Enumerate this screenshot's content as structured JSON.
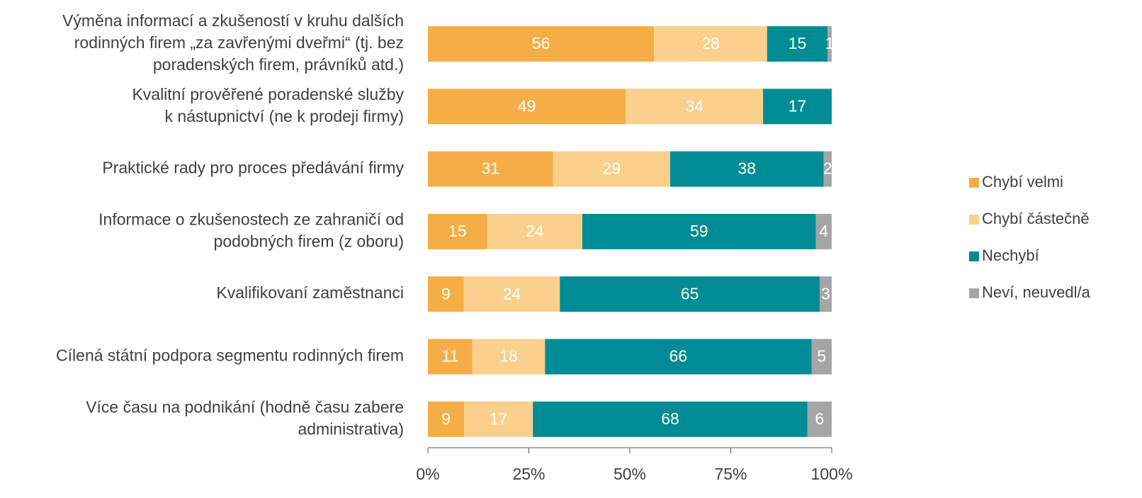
{
  "chart_data": {
    "type": "bar",
    "orientation": "horizontal",
    "stack": "percent",
    "categories": [
      "Výměna informací a zkušeností v kruhu dalších\nrodinných firem „za zavřenými dveřmi“ (tj. bez\nporadenských firem, právníků atd.)",
      "Kvalitní prověřené poradenské služby\nk nástupnictví (ne k prodeji firmy)",
      "Praktické rady pro proces předávání firmy",
      "Informace o zkušenostech ze zahraničí od\npodobných firem (z oboru)",
      "Kvalifikovaní zaměstnanci",
      "Cílená státní podpora segmentu rodinných firem",
      "Více času na podnikání (hodně času zabere\nadministrativa)"
    ],
    "series": [
      {
        "name": "Chybí velmi",
        "color": "#f5ae45",
        "values": [
          56,
          49,
          31,
          15,
          9,
          11,
          9
        ]
      },
      {
        "name": "Chybí částečně",
        "color": "#fbd08c",
        "values": [
          28,
          34,
          29,
          24,
          24,
          18,
          17
        ]
      },
      {
        "name": "Nechybí",
        "color": "#008c94",
        "values": [
          15,
          17,
          38,
          59,
          65,
          66,
          68
        ]
      },
      {
        "name": "Neví, neuvedl/a",
        "color": "#a5a5a5",
        "values": [
          1,
          null,
          2,
          4,
          3,
          5,
          6
        ]
      }
    ],
    "xlim": [
      0,
      100
    ],
    "xticks": [
      {
        "value": 0,
        "label": "0%"
      },
      {
        "value": 25,
        "label": "25%"
      },
      {
        "value": 50,
        "label": "50%"
      },
      {
        "value": 75,
        "label": "75%"
      },
      {
        "value": 100,
        "label": "100%"
      }
    ],
    "legend": "right"
  }
}
